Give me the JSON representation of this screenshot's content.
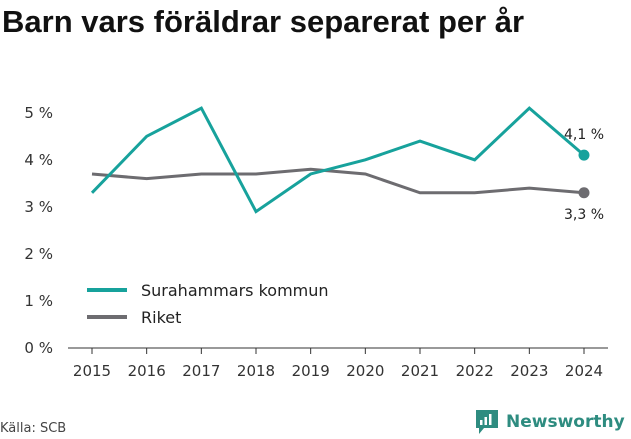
{
  "title": "Barn vars föräldrar separerat per år",
  "source": "Källa: SCB",
  "brand": {
    "name": "Newsworthy",
    "icon": "newsworthy-logo-icon",
    "color": "#2e8c80"
  },
  "chart_data": {
    "type": "line",
    "x": [
      2015,
      2016,
      2017,
      2018,
      2019,
      2020,
      2021,
      2022,
      2023,
      2024
    ],
    "series": [
      {
        "name": "Surahammars kommun",
        "color": "#17a29c",
        "values": [
          3.3,
          4.5,
          5.1,
          2.9,
          3.7,
          4.0,
          4.4,
          4.0,
          5.1,
          4.1
        ],
        "end_label": "4,1 %"
      },
      {
        "name": "Riket",
        "color": "#6d6c70",
        "values": [
          3.7,
          3.6,
          3.7,
          3.7,
          3.8,
          3.7,
          3.3,
          3.3,
          3.4,
          3.3
        ],
        "end_label": "3,3 %"
      }
    ],
    "yticks": [
      0,
      1,
      2,
      3,
      4,
      5
    ],
    "ytick_labels": [
      "0 %",
      "1 %",
      "2 %",
      "3 %",
      "4 %",
      "5 %"
    ],
    "ylim": [
      0,
      5.4
    ],
    "grid": false,
    "legend_position": "bottom-left"
  }
}
